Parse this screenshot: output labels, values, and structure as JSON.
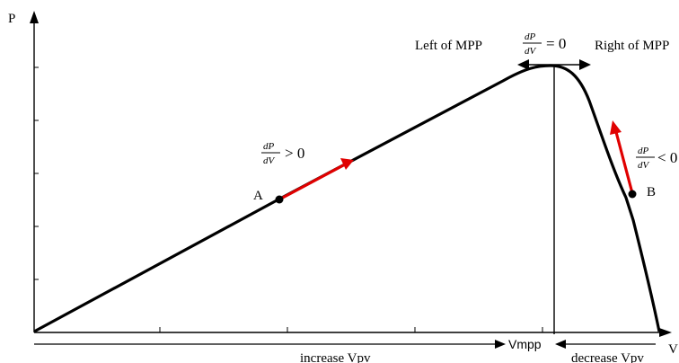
{
  "axes": {
    "y_label": "P",
    "x_label": "V"
  },
  "labels": {
    "left_of_mpp": "Left of MPP",
    "right_of_mpp": "Right of MPP",
    "vmpp": "Vmpp",
    "increase_vpv": "increase Vpv",
    "decrease_vpv": "decrease Vpv",
    "point_a": "A",
    "point_b": "B"
  },
  "derivatives": {
    "numerator": "dP",
    "denominator": "dV",
    "at_mpp": "= 0",
    "left_of_mpp": "> 0",
    "right_of_mpp": "< 0"
  },
  "colors": {
    "curve": "#000000",
    "tangent_arrow": "#e00000"
  }
}
